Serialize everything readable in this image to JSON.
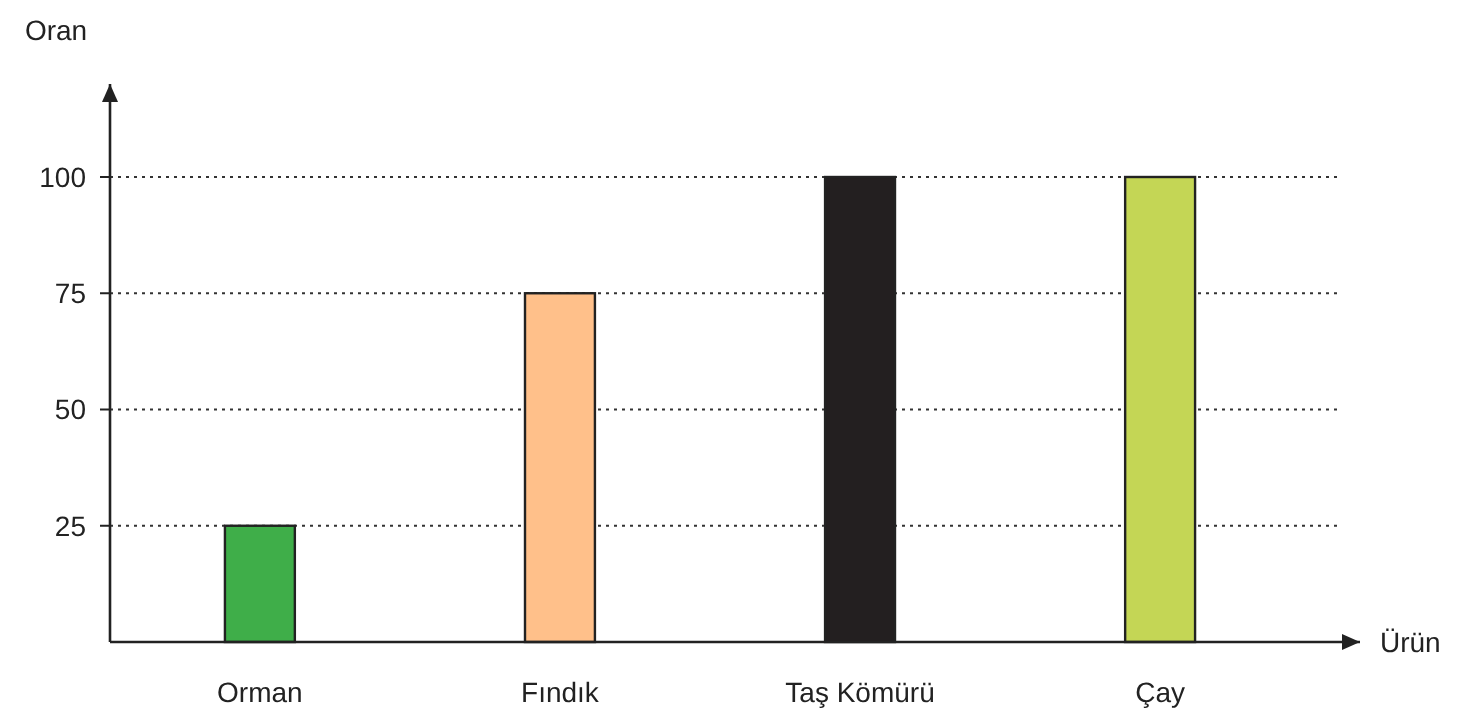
{
  "chart_data": {
    "type": "bar",
    "categories": [
      "Orman",
      "Fındık",
      "Taş Kömürü",
      "Çay"
    ],
    "values": [
      25,
      75,
      100,
      100
    ],
    "colors": [
      "#3fae49",
      "#ffc08a",
      "#231f20",
      "#c4d655"
    ],
    "ylabel": "Oran",
    "xlabel": "Ürün",
    "ylim": [
      0,
      120
    ],
    "yticks": [
      25,
      50,
      75,
      100
    ],
    "grid": "y",
    "line_style": "dotted"
  }
}
